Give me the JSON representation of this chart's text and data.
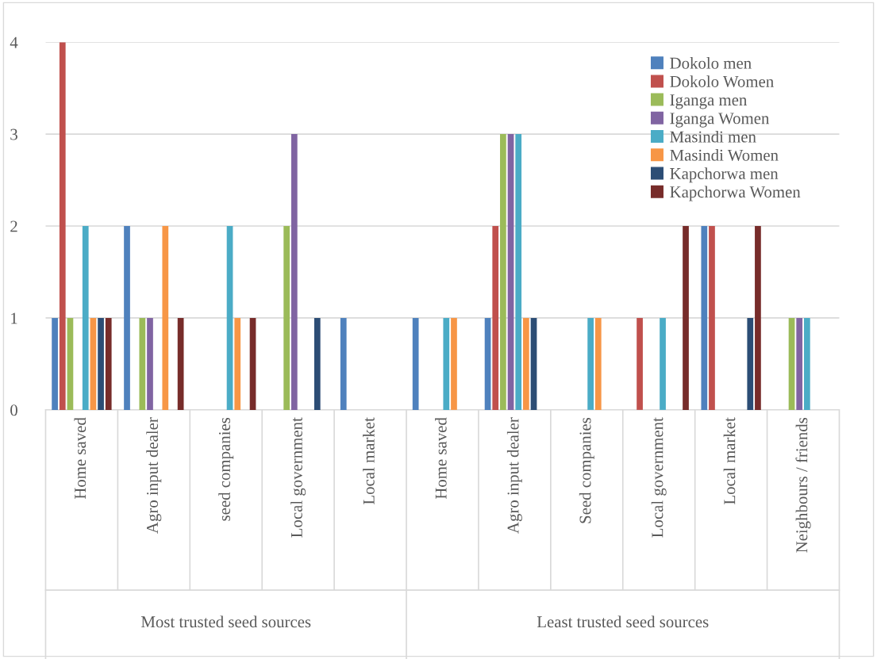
{
  "chart_data": {
    "type": "bar",
    "categories": [
      "Home saved",
      "Agro input dealer",
      "seed companies",
      "Local government",
      "Local market",
      "Home saved",
      "Agro input dealer",
      "Seed companies",
      "Local government",
      "Local market",
      "Neighbours / friends"
    ],
    "series": [
      {
        "name": "Dokolo men",
        "color": "#4f81bd",
        "values": [
          1,
          2,
          0,
          0,
          1,
          1,
          1,
          0,
          0,
          2,
          0
        ]
      },
      {
        "name": "Dokolo Women",
        "color": "#c0504d",
        "values": [
          4,
          0,
          0,
          0,
          0,
          0,
          2,
          0,
          1,
          2,
          0
        ]
      },
      {
        "name": "Iganga men",
        "color": "#9bbb59",
        "values": [
          1,
          1,
          0,
          2,
          0,
          0,
          3,
          0,
          0,
          0,
          1
        ]
      },
      {
        "name": "Iganga Women",
        "color": "#8064a2",
        "values": [
          0,
          1,
          0,
          3,
          0,
          0,
          3,
          0,
          0,
          0,
          1
        ]
      },
      {
        "name": "Masindi men",
        "color": "#4bacc6",
        "values": [
          2,
          0,
          2,
          0,
          0,
          1,
          3,
          1,
          1,
          0,
          1
        ]
      },
      {
        "name": "Masindi Women",
        "color": "#f79646",
        "values": [
          1,
          2,
          1,
          0,
          0,
          1,
          1,
          1,
          0,
          0,
          0
        ]
      },
      {
        "name": "Kapchorwa men",
        "color": "#2c4d75",
        "values": [
          1,
          0,
          0,
          1,
          0,
          0,
          1,
          0,
          0,
          1,
          0
        ]
      },
      {
        "name": "Kapchorwa Women",
        "color": "#772c2a",
        "values": [
          1,
          1,
          1,
          0,
          0,
          0,
          0,
          0,
          2,
          2,
          0
        ]
      }
    ],
    "annotations": [
      "Most trusted seed sources",
      "Least trusted seed sources"
    ],
    "ylim": [
      0,
      4
    ],
    "yticks": [
      0,
      1,
      2,
      3,
      4
    ],
    "grid": "y",
    "legend": "top right"
  }
}
